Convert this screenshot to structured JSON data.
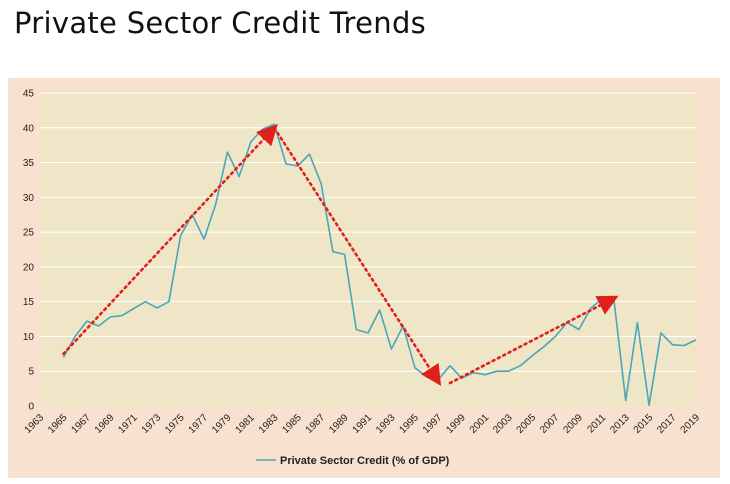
{
  "title": "Private Sector Credit Trends",
  "colors": {
    "background": "#ffffff",
    "card": "#f8e1cf",
    "plot": "#efe6c8",
    "grid": "#ffffff",
    "series": "#4aa6b8",
    "trend_arrow": "#e0201b"
  },
  "chart_data": {
    "type": "line",
    "title": "Private Sector Credit Trends",
    "xlabel": "",
    "ylabel": "",
    "x": [
      1965,
      1966,
      1967,
      1968,
      1969,
      1970,
      1971,
      1972,
      1973,
      1974,
      1975,
      1976,
      1977,
      1978,
      1979,
      1980,
      1981,
      1982,
      1983,
      1984,
      1985,
      1986,
      1987,
      1988,
      1989,
      1990,
      1991,
      1992,
      1993,
      1994,
      1995,
      1996,
      1997,
      1998,
      1999,
      2000,
      2001,
      2002,
      2003,
      2004,
      2005,
      2006,
      2007,
      2008,
      2009,
      2010,
      2011,
      2012,
      2013,
      2014,
      2015,
      2016,
      2017,
      2018,
      2019
    ],
    "series": [
      {
        "name": "Private Sector Credit (% of GDP)",
        "values": [
          7.0,
          10.0,
          12.2,
          11.5,
          12.8,
          13.0,
          14.0,
          15.0,
          14.1,
          15.0,
          24.5,
          27.5,
          24.0,
          29.0,
          36.5,
          33.0,
          38.0,
          39.8,
          40.5,
          34.8,
          34.5,
          36.2,
          32.0,
          22.2,
          21.8,
          11.0,
          10.5,
          13.8,
          8.2,
          11.5,
          5.5,
          4.2,
          3.8,
          5.8,
          4.0,
          4.8,
          4.5,
          5.0,
          5.0,
          5.8,
          7.2,
          8.5,
          10.0,
          12.0,
          11.0,
          14.0,
          15.5,
          15.2,
          0.8,
          12.0,
          0.1,
          10.5,
          8.8,
          8.7,
          9.5
        ]
      }
    ],
    "trend_arrows": [
      {
        "from": [
          1965,
          7.5
        ],
        "to": [
          1983,
          40.0
        ]
      },
      {
        "from": [
          1983,
          40.0
        ],
        "to": [
          1997,
          3.5
        ]
      },
      {
        "from": [
          1998,
          3.3
        ],
        "to": [
          2012,
          15.5
        ]
      }
    ],
    "xticks": [
      "1963",
      "1965",
      "1967",
      "1969",
      "1971",
      "1973",
      "1975",
      "1977",
      "1979",
      "1981",
      "1983",
      "1985",
      "1987",
      "1989",
      "1991",
      "1993",
      "1995",
      "1997",
      "1999",
      "2001",
      "2003",
      "2005",
      "2007",
      "2009",
      "2011",
      "2013",
      "2015",
      "2017",
      "2019"
    ],
    "xlim": [
      1963,
      2019
    ],
    "yticks": [
      "0",
      "5",
      "10",
      "15",
      "20",
      "25",
      "30",
      "35",
      "40",
      "45"
    ],
    "ylim": [
      0,
      45
    ],
    "grid": "horizontal",
    "legend_position": "bottom-center",
    "legend_label": "Private Sector Credit (% of GDP)"
  }
}
